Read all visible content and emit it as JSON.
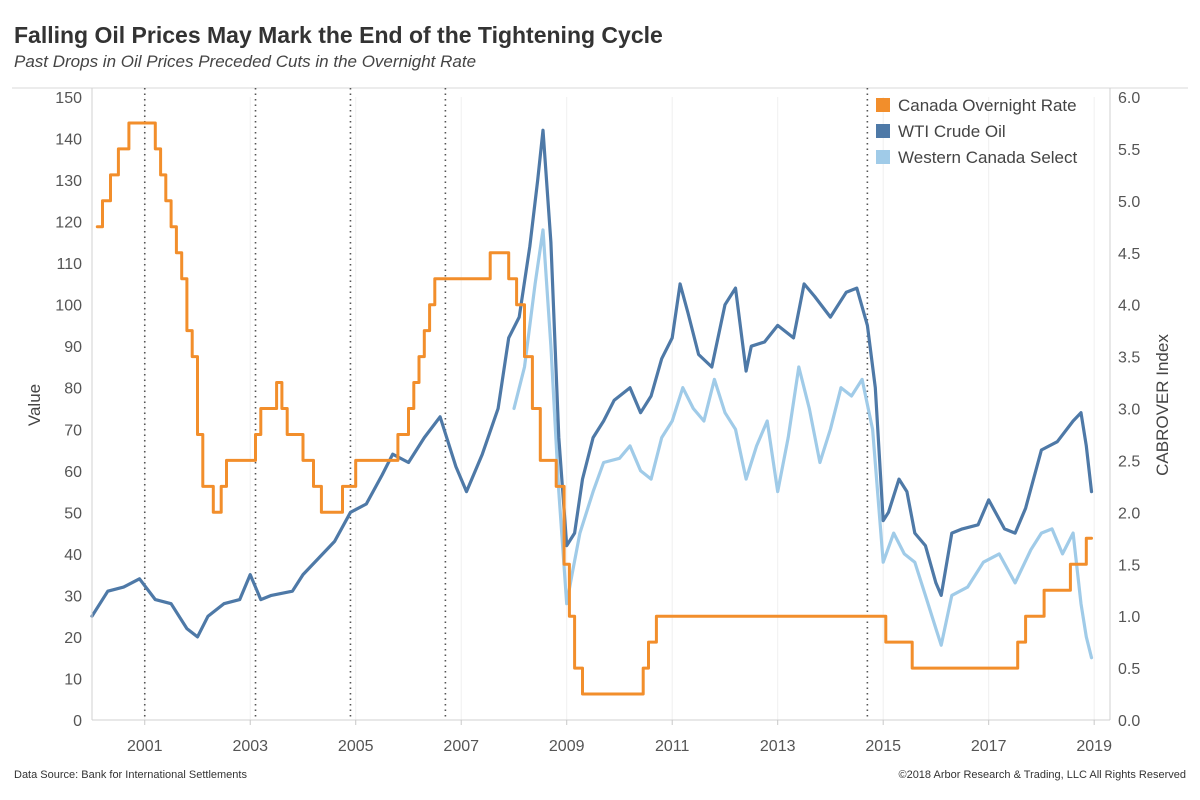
{
  "header": {
    "title": "Falling Oil Prices May Mark the End of the Tightening Cycle",
    "subtitle": "Past Drops in Oil Prices Preceded Cuts in the Overnight Rate"
  },
  "footer": {
    "source": "Data Source: Bank for International Settlements",
    "copyright": "©2018 Arbor Research & Trading, LLC   All Rights Reserved"
  },
  "chart_data": {
    "type": "line",
    "title": "Falling Oil Prices May Mark the End of the Tightening Cycle",
    "subtitle": "Past Drops in Oil Prices Preceded Cuts in the Overnight Rate",
    "x_axis": {
      "label": "",
      "range": [
        2000.0,
        2019.3
      ],
      "ticks": [
        2001,
        2003,
        2005,
        2007,
        2009,
        2011,
        2013,
        2015,
        2017,
        2019
      ]
    },
    "y_axis_left": {
      "label": "Value",
      "range": [
        0,
        150
      ],
      "ticks": [
        0,
        10,
        20,
        30,
        40,
        50,
        60,
        70,
        80,
        90,
        100,
        110,
        120,
        130,
        140,
        150
      ]
    },
    "y_axis_right": {
      "label": "CABROVER Index",
      "range": [
        0,
        6
      ],
      "ticks": [
        "0.0",
        "0.5",
        "1.0",
        "1.5",
        "2.0",
        "2.5",
        "3.0",
        "3.5",
        "4.0",
        "4.5",
        "5.0",
        "5.5",
        "6.0"
      ]
    },
    "grid": "x-only-faint",
    "legend_position": "top-right",
    "vertical_markers": [
      2001.0,
      2003.1,
      2004.9,
      2006.7,
      2014.7
    ],
    "series": [
      {
        "name": "Canada Overnight Rate",
        "axis": "right",
        "color": "#F28E2B",
        "style": "step",
        "x": [
          2000.1,
          2000.2,
          2000.35,
          2000.5,
          2000.7,
          2001.2,
          2001.3,
          2001.4,
          2001.5,
          2001.6,
          2001.7,
          2001.8,
          2001.9,
          2002.0,
          2002.1,
          2002.3,
          2002.45,
          2002.55,
          2003.1,
          2003.2,
          2003.5,
          2003.6,
          2003.7,
          2004.0,
          2004.2,
          2004.35,
          2004.75,
          2005.0,
          2005.8,
          2006.0,
          2006.1,
          2006.2,
          2006.3,
          2006.4,
          2006.5,
          2006.6,
          2007.55,
          2007.9,
          2008.05,
          2008.2,
          2008.35,
          2008.5,
          2008.8,
          2008.95,
          2009.05,
          2009.15,
          2009.3,
          2010.45,
          2010.55,
          2010.7,
          2015.05,
          2015.55,
          2017.55,
          2017.7,
          2018.05,
          2018.55,
          2018.85,
          2018.95
        ],
        "values": [
          4.75,
          5.0,
          5.25,
          5.5,
          5.75,
          5.5,
          5.25,
          5.0,
          4.75,
          4.5,
          4.25,
          3.75,
          3.5,
          2.75,
          2.25,
          2.0,
          2.25,
          2.5,
          2.75,
          3.0,
          3.25,
          3.0,
          2.75,
          2.5,
          2.25,
          2.0,
          2.25,
          2.5,
          2.75,
          3.0,
          3.25,
          3.5,
          3.75,
          4.0,
          4.25,
          4.25,
          4.5,
          4.25,
          4.0,
          3.5,
          3.0,
          2.5,
          2.25,
          1.5,
          1.0,
          0.5,
          0.25,
          0.5,
          0.75,
          1.0,
          0.75,
          0.5,
          0.75,
          1.0,
          1.25,
          1.5,
          1.75,
          1.75
        ]
      },
      {
        "name": "WTI Crude Oil",
        "axis": "left",
        "color": "#4E79A7",
        "style": "line",
        "x": [
          2000.0,
          2000.3,
          2000.6,
          2000.9,
          2001.2,
          2001.5,
          2001.8,
          2002.0,
          2002.2,
          2002.5,
          2002.8,
          2003.0,
          2003.2,
          2003.4,
          2003.8,
          2004.0,
          2004.3,
          2004.6,
          2004.9,
          2005.2,
          2005.5,
          2005.7,
          2006.0,
          2006.3,
          2006.6,
          2006.9,
          2007.1,
          2007.4,
          2007.7,
          2007.9,
          2008.1,
          2008.3,
          2008.45,
          2008.55,
          2008.7,
          2008.85,
          2009.0,
          2009.15,
          2009.3,
          2009.5,
          2009.7,
          2009.9,
          2010.2,
          2010.4,
          2010.6,
          2010.8,
          2011.0,
          2011.15,
          2011.3,
          2011.5,
          2011.75,
          2012.0,
          2012.2,
          2012.4,
          2012.5,
          2012.75,
          2013.0,
          2013.3,
          2013.5,
          2013.7,
          2014.0,
          2014.3,
          2014.5,
          2014.7,
          2014.85,
          2015.0,
          2015.1,
          2015.3,
          2015.45,
          2015.6,
          2015.8,
          2016.0,
          2016.1,
          2016.3,
          2016.5,
          2016.8,
          2017.0,
          2017.3,
          2017.5,
          2017.7,
          2018.0,
          2018.3,
          2018.6,
          2018.75,
          2018.85,
          2018.95
        ],
        "values": [
          25,
          31,
          32,
          34,
          29,
          28,
          22,
          20,
          25,
          28,
          29,
          35,
          29,
          30,
          31,
          35,
          39,
          43,
          50,
          52,
          59,
          64,
          62,
          68,
          73,
          61,
          55,
          64,
          75,
          92,
          97,
          114,
          130,
          142,
          115,
          68,
          42,
          45,
          58,
          68,
          72,
          77,
          80,
          74,
          78,
          87,
          92,
          105,
          98,
          88,
          85,
          100,
          104,
          84,
          90,
          91,
          95,
          92,
          105,
          102,
          97,
          103,
          104,
          95,
          80,
          48,
          50,
          58,
          55,
          45,
          42,
          33,
          30,
          45,
          46,
          47,
          53,
          46,
          45,
          51,
          65,
          67,
          72,
          74,
          66,
          55
        ]
      },
      {
        "name": "Western Canada Select",
        "axis": "left",
        "color": "#A0CBE8",
        "style": "line",
        "x": [
          2008.0,
          2008.2,
          2008.4,
          2008.55,
          2008.7,
          2008.85,
          2009.0,
          2009.1,
          2009.25,
          2009.5,
          2009.7,
          2010.0,
          2010.2,
          2010.4,
          2010.6,
          2010.8,
          2011.0,
          2011.2,
          2011.4,
          2011.6,
          2011.8,
          2012.0,
          2012.2,
          2012.4,
          2012.6,
          2012.8,
          2013.0,
          2013.2,
          2013.4,
          2013.6,
          2013.8,
          2014.0,
          2014.2,
          2014.4,
          2014.6,
          2014.8,
          2015.0,
          2015.2,
          2015.4,
          2015.6,
          2015.8,
          2016.0,
          2016.1,
          2016.3,
          2016.6,
          2016.9,
          2017.2,
          2017.5,
          2017.8,
          2018.0,
          2018.2,
          2018.4,
          2018.6,
          2018.75,
          2018.85,
          2018.95
        ],
        "values": [
          75,
          85,
          105,
          118,
          90,
          55,
          28,
          35,
          45,
          55,
          62,
          63,
          66,
          60,
          58,
          68,
          72,
          80,
          75,
          72,
          82,
          74,
          70,
          58,
          66,
          72,
          55,
          68,
          85,
          75,
          62,
          70,
          80,
          78,
          82,
          70,
          38,
          45,
          40,
          38,
          30,
          22,
          18,
          30,
          32,
          38,
          40,
          33,
          41,
          45,
          46,
          40,
          45,
          28,
          20,
          15
        ]
      }
    ]
  }
}
